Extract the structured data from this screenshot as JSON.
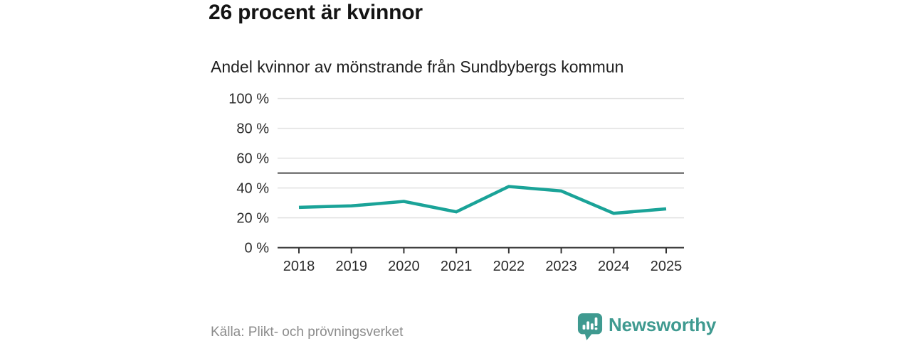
{
  "header": {
    "title": "26 procent är kvinnor",
    "subtitle": "Andel kvinnor av mönstrande från Sundbybergs kommun"
  },
  "footer": {
    "source": "Källa: Plikt- och prövningsverket",
    "brand_name": "Newsworthy"
  },
  "colors": {
    "line": "#1aa398",
    "grid": "#e0e0e0",
    "reference": "#4d4d4d",
    "axis": "#333333",
    "text": "#2b2b2b",
    "brand": "#3f9a90",
    "muted": "#8c8c8c"
  },
  "chart_data": {
    "type": "line",
    "title": "26 procent är kvinnor",
    "subtitle": "Andel kvinnor av mönstrande från Sundbybergs kommun",
    "categories": [
      "2018",
      "2019",
      "2020",
      "2021",
      "2022",
      "2023",
      "2024",
      "2025"
    ],
    "series": [
      {
        "name": "Andel kvinnor av mönstrande",
        "values": [
          27,
          28,
          31,
          24,
          41,
          38,
          23,
          26
        ]
      }
    ],
    "unit": "%",
    "xlabel": "",
    "ylabel": "",
    "ylim": [
      0,
      100
    ],
    "yticks": [
      0,
      20,
      40,
      60,
      80,
      100
    ],
    "ytick_suffix": " %",
    "reference_line": 50,
    "grid": true,
    "legend": "none",
    "line_color": "#1aa398"
  }
}
